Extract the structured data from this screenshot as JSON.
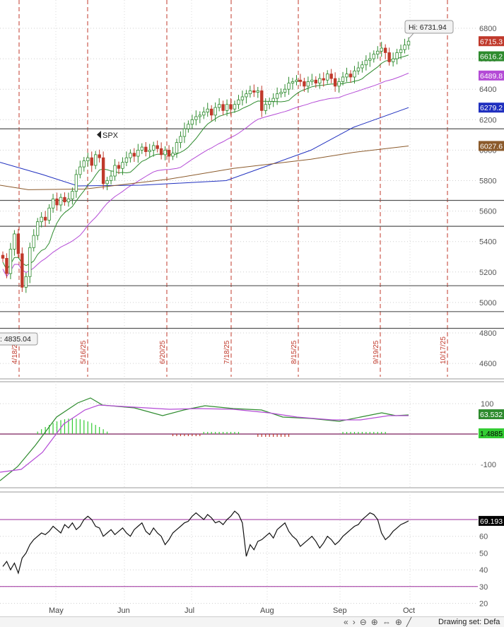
{
  "chart_data": [
    {
      "type": "candlestick",
      "symbol": "SPX",
      "hi_label": "Hi: 6731.94",
      "ylim": [
        4450,
        6900
      ],
      "y_ticks": [
        "4600",
        "4800",
        "5000",
        "5200",
        "5400",
        "5600",
        "5800",
        "6000",
        "6200",
        "6400",
        "6600",
        "6800"
      ],
      "price_badges": [
        {
          "label": "6715.3",
          "value": 6715.3,
          "color": "#c0392b"
        },
        {
          "label": "6616.2",
          "value": 6616.2,
          "color": "#2e8b2e"
        },
        {
          "label": "6489.8",
          "value": 6489.8,
          "color": "#b44bd6"
        },
        {
          "label": "6279.2",
          "value": 6279.2,
          "color": "#1f2fbf"
        },
        {
          "label": "6027.6",
          "value": 6027.6,
          "color": "#8b5a2b"
        }
      ],
      "low_label": ": 4835.04",
      "horizontal_lines": [
        6140,
        5670,
        5500,
        5110,
        4940,
        4830
      ],
      "vertical_dates": [
        "4/18/25",
        "5/16/25",
        "6/20/25",
        "7/18/25",
        "8/15/25",
        "9/19/25",
        "10/17/25"
      ],
      "month_labels": [
        "May",
        "Jun",
        "Jul",
        "Aug",
        "Sep",
        "Oct"
      ],
      "closes": [
        5290,
        5190,
        5350,
        5450,
        5320,
        5100,
        5170,
        5360,
        5440,
        5530,
        5560,
        5540,
        5620,
        5680,
        5640,
        5690,
        5660,
        5680,
        5730,
        5840,
        5890,
        5930,
        5950,
        5900,
        5970,
        5950,
        5780,
        5800,
        5830,
        5900,
        5880,
        5920,
        5950,
        5980,
        5960,
        6000,
        6020,
        5990,
        6000,
        6030,
        6010,
        5970,
        6000,
        5960,
        5980,
        6050,
        6090,
        6140,
        6170,
        6200,
        6220,
        6230,
        6250,
        6270,
        6230,
        6280,
        6300,
        6260,
        6300,
        6270,
        6300,
        6330,
        6350,
        6370,
        6390,
        6380,
        6390,
        6260,
        6300,
        6320,
        6340,
        6370,
        6380,
        6400,
        6440,
        6450,
        6460,
        6450,
        6420,
        6450,
        6460,
        6440,
        6470,
        6460,
        6500,
        6470,
        6420,
        6450,
        6480,
        6500,
        6480,
        6520,
        6540,
        6560,
        6590,
        6600,
        6630,
        6650,
        6670,
        6640,
        6580,
        6600,
        6640,
        6660,
        6690,
        6715.3
      ],
      "sma_green_last": 6616.2,
      "sma_purple_last": 6489.8,
      "sma_blue_last": 6279.2,
      "sma_brown_last": 6027.6
    },
    {
      "type": "line",
      "name": "MACD panel",
      "y_ticks": [
        "100",
        "-100"
      ],
      "badges": [
        {
          "label": "63.532",
          "color": "#2e8b2e"
        },
        {
          "label": "1.4885",
          "color": "#33cc33"
        }
      ]
    },
    {
      "type": "line",
      "name": "Oscillator panel",
      "y_ticks": [
        "70",
        "60",
        "50",
        "40",
        "30",
        "20"
      ],
      "levels": [
        70,
        30
      ],
      "badges": [
        {
          "label": "69.193",
          "color": "#000000"
        }
      ]
    }
  ],
  "toolbar": {
    "drawing_set_label": "Drawing set: Defa"
  }
}
